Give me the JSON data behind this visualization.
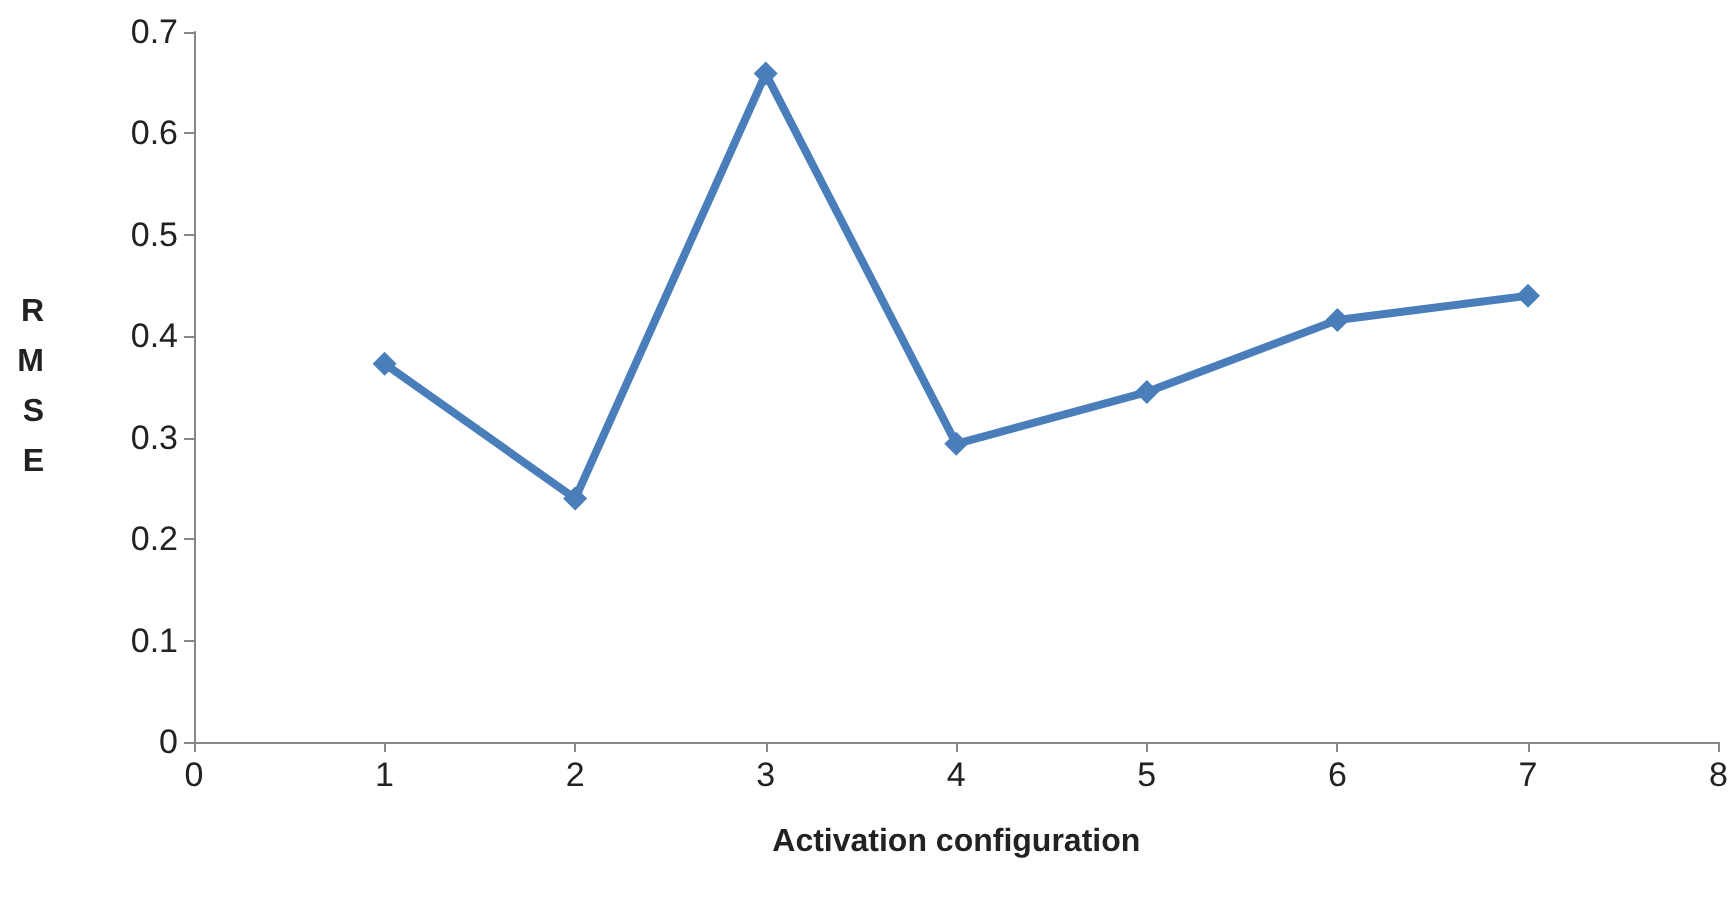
{
  "chart_data": {
    "type": "line",
    "xlabel": "Activation configuration",
    "ylabel": "RMSE",
    "x": [
      1,
      2,
      3,
      4,
      5,
      6,
      7
    ],
    "series": [
      {
        "color": "#4a7ebb",
        "values": [
          0.373,
          0.24,
          0.659,
          0.294,
          0.345,
          0.416,
          0.44
        ]
      }
    ],
    "xlim": [
      0,
      8
    ],
    "xticks": [
      0,
      1,
      2,
      3,
      4,
      5,
      6,
      7,
      8
    ],
    "ylim": [
      0,
      0.7
    ],
    "yticks": [
      0,
      0.1,
      0.2,
      0.3,
      0.4,
      0.5,
      0.6,
      0.7
    ],
    "grid": false,
    "marker": "diamond",
    "line_style": "solid"
  }
}
